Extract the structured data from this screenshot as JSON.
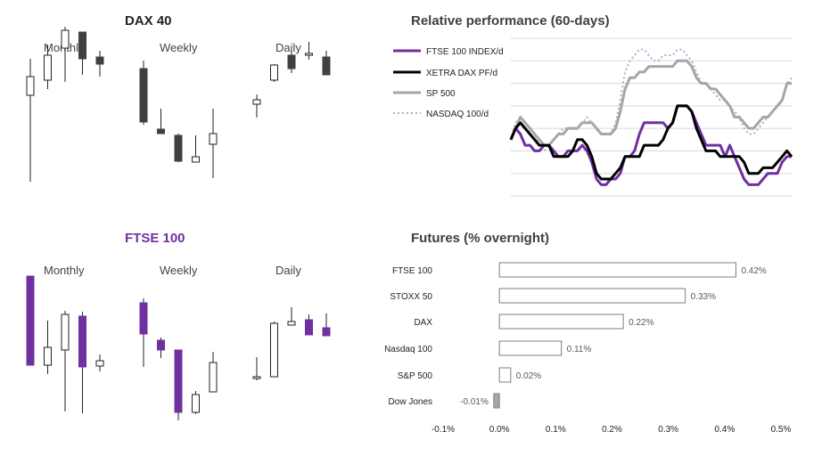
{
  "colors": {
    "purple": "#7030a0",
    "dark": "#404040",
    "black": "#000000",
    "grey": "#a6a6a6",
    "lightblue": "#9fb3d1",
    "grid": "#d9d9d9",
    "bar_border": "#7f7f7f"
  },
  "dax": {
    "title": "DAX 40",
    "monthly_label": "Monthly",
    "weekly_label": "Weekly",
    "daily_label": "Daily",
    "candle_color": "#404040",
    "monthly": [
      {
        "open": 105,
        "close": 126,
        "high": 146,
        "low": 8
      },
      {
        "open": 122,
        "close": 150,
        "high": 162,
        "low": 112
      },
      {
        "open": 158,
        "close": 178,
        "high": 182,
        "low": 120
      },
      {
        "open": 176,
        "close": 146,
        "high": 176,
        "low": 128
      },
      {
        "open": 148,
        "close": 140,
        "high": 155,
        "low": 126
      }
    ],
    "weekly": [
      {
        "open": 135,
        "close": 75,
        "high": 144,
        "low": 72
      },
      {
        "open": 67,
        "close": 62,
        "high": 90,
        "low": 62
      },
      {
        "open": 60,
        "close": 31,
        "high": 62,
        "low": 30
      },
      {
        "open": 30,
        "close": 36,
        "high": 60,
        "low": 30
      },
      {
        "open": 50,
        "close": 62,
        "high": 90,
        "low": 12
      }
    ],
    "daily": [
      {
        "open": 95,
        "close": 100,
        "high": 106,
        "low": 80
      },
      {
        "open": 122,
        "close": 139,
        "high": 140,
        "low": 120
      },
      {
        "open": 150,
        "close": 135,
        "high": 155,
        "low": 130
      },
      {
        "open": 150,
        "close": 152,
        "high": 165,
        "low": 145
      },
      {
        "open": 148,
        "close": 128,
        "high": 155,
        "low": 128
      }
    ]
  },
  "ftse": {
    "title": "FTSE 100",
    "monthly_label": "Monthly",
    "weekly_label": "Weekly",
    "daily_label": "Daily",
    "candle_color": "#7030a0",
    "monthly": [
      {
        "open": 165,
        "close": 65,
        "high": 165,
        "low": 65
      },
      {
        "open": 65,
        "close": 85,
        "high": 115,
        "low": 55
      },
      {
        "open": 82,
        "close": 122,
        "high": 126,
        "low": 13
      },
      {
        "open": 120,
        "close": 63,
        "high": 125,
        "low": 11
      },
      {
        "open": 64,
        "close": 70,
        "high": 77,
        "low": 58
      }
    ],
    "weekly": [
      {
        "open": 135,
        "close": 100,
        "high": 140,
        "low": 63
      },
      {
        "open": 93,
        "close": 82,
        "high": 96,
        "low": 73
      },
      {
        "open": 82,
        "close": 12,
        "high": 82,
        "low": 3
      },
      {
        "open": 12,
        "close": 32,
        "high": 36,
        "low": 10
      },
      {
        "open": 35,
        "close": 68,
        "high": 80,
        "low": 35
      }
    ],
    "daily": [
      {
        "open": 50,
        "close": 52,
        "high": 74,
        "low": 48
      },
      {
        "open": 52,
        "close": 112,
        "high": 114,
        "low": 52
      },
      {
        "open": 110,
        "close": 114,
        "high": 130,
        "low": 110
      },
      {
        "open": 116,
        "close": 99,
        "high": 122,
        "low": 99
      },
      {
        "open": 107,
        "close": 98,
        "high": 123,
        "low": 98
      }
    ]
  },
  "relative": {
    "title": "Relative performance (60-days)",
    "legend_title": "",
    "series": [
      {
        "name": "FTSE 100 INDEX/d",
        "color": "#7030a0",
        "style": "solid",
        "values": [
          0.0,
          2.0,
          1.0,
          -1.0,
          -1.0,
          -2.0,
          -2.0,
          -1.0,
          -1.0,
          -2.0,
          -3.0,
          -3.0,
          -2.0,
          -2.0,
          -2.0,
          -1.0,
          -2.0,
          -4.0,
          -7.0,
          -8.0,
          -8.0,
          -7.0,
          -7.0,
          -6.0,
          -3.0,
          -3.0,
          -2.0,
          1.0,
          3.0,
          3.0,
          3.0,
          3.0,
          3.0,
          2.0,
          3.0,
          6.0,
          6.0,
          6.0,
          5.0,
          3.0,
          1.0,
          -1.0,
          -1.0,
          -1.0,
          -1.0,
          -3.0,
          -1.0,
          -3.0,
          -5.0,
          -7.0,
          -8.0,
          -8.0,
          -8.0,
          -7.0,
          -6.0,
          -6.0,
          -6.0,
          -4.0,
          -3.0,
          -3.0
        ]
      },
      {
        "name": "XETRA DAX PF/d",
        "color": "#000000",
        "style": "solid",
        "values": [
          0.0,
          2.0,
          3.0,
          2.0,
          1.0,
          0.0,
          -1.0,
          -1.0,
          -1.0,
          -3.0,
          -3.0,
          -3.0,
          -3.0,
          -2.0,
          0.0,
          0.0,
          -1.0,
          -3.0,
          -6.0,
          -7.0,
          -7.0,
          -7.0,
          -6.0,
          -5.0,
          -3.0,
          -3.0,
          -3.0,
          -3.0,
          -1.0,
          -1.0,
          -1.0,
          -1.0,
          0.0,
          2.0,
          3.0,
          6.0,
          6.0,
          6.0,
          5.0,
          2.0,
          0.0,
          -2.0,
          -2.0,
          -2.0,
          -3.0,
          -3.0,
          -3.0,
          -3.0,
          -3.0,
          -4.0,
          -6.0,
          -6.0,
          -6.0,
          -5.0,
          -5.0,
          -5.0,
          -4.0,
          -3.0,
          -2.0,
          -3.0
        ]
      },
      {
        "name": "SP 500",
        "color": "#a6a6a6",
        "style": "solid",
        "values": [
          0.0,
          2.0,
          4.0,
          3.0,
          2.0,
          1.0,
          0.0,
          -1.0,
          -1.0,
          0.0,
          1.0,
          1.0,
          2.0,
          2.0,
          2.0,
          3.0,
          3.0,
          3.0,
          2.0,
          1.0,
          1.0,
          1.0,
          2.0,
          5.0,
          9.0,
          11.0,
          11.0,
          12.0,
          12.0,
          13.0,
          13.0,
          13.0,
          13.0,
          13.0,
          13.0,
          14.0,
          14.0,
          14.0,
          13.0,
          11.0,
          10.0,
          10.0,
          9.0,
          9.0,
          8.0,
          7.0,
          6.0,
          4.0,
          4.0,
          3.0,
          2.0,
          2.0,
          3.0,
          4.0,
          4.0,
          5.0,
          6.0,
          7.0,
          10.0,
          10.0
        ]
      },
      {
        "name": "NASDAQ 100/d",
        "color": "#9fb3d1",
        "style": "dotted",
        "values": [
          0.0,
          3.0,
          4.0,
          3.0,
          2.0,
          1.0,
          -1.0,
          -2.0,
          -1.0,
          0.0,
          1.0,
          2.0,
          2.0,
          2.0,
          2.0,
          3.0,
          4.0,
          3.0,
          2.0,
          1.0,
          1.0,
          1.0,
          3.0,
          7.0,
          12.0,
          14.0,
          15.0,
          16.0,
          16.0,
          15.0,
          14.0,
          14.0,
          15.0,
          15.0,
          15.0,
          16.0,
          16.0,
          15.0,
          14.0,
          12.0,
          10.0,
          10.0,
          9.0,
          8.0,
          7.0,
          7.0,
          6.0,
          5.0,
          4.0,
          2.0,
          1.0,
          1.0,
          2.0,
          3.0,
          4.0,
          5.0,
          6.0,
          7.0,
          10.0,
          11.0
        ]
      }
    ],
    "ylim": [
      -10,
      18
    ]
  },
  "futures": {
    "title": "Futures (% overnight)",
    "categories": [
      "FTSE 100",
      "STOXX 50",
      "DAX",
      "Nasdaq 100",
      "S&P 500",
      "Dow Jones"
    ],
    "values": [
      0.42,
      0.33,
      0.22,
      0.11,
      0.02,
      -0.01
    ],
    "value_labels": [
      "0.42%",
      "0.33%",
      "0.22%",
      "0.11%",
      "0.02%",
      "-0.01%"
    ],
    "ticks": [
      -0.1,
      0.0,
      0.1,
      0.2,
      0.3,
      0.4,
      0.5
    ],
    "tick_labels": [
      "-0.1%",
      "0.0%",
      "0.1%",
      "0.2%",
      "0.3%",
      "0.4%",
      "0.5%"
    ],
    "xlim": [
      -0.1,
      0.5
    ]
  },
  "chart_data": [
    {
      "type": "candlestick",
      "title": "DAX 40",
      "panels": [
        "Monthly",
        "Weekly",
        "Daily"
      ]
    },
    {
      "type": "candlestick",
      "title": "FTSE 100",
      "panels": [
        "Monthly",
        "Weekly",
        "Daily"
      ]
    },
    {
      "type": "line",
      "title": "Relative performance (60-days)",
      "series": [
        "FTSE 100 INDEX/d",
        "XETRA DAX PF/d",
        "SP 500",
        "NASDAQ 100/d"
      ],
      "grid": true,
      "legend": "left"
    },
    {
      "type": "bar",
      "orientation": "horizontal",
      "title": "Futures (% overnight)",
      "categories": [
        "FTSE 100",
        "STOXX 50",
        "DAX",
        "Nasdaq 100",
        "S&P 500",
        "Dow Jones"
      ],
      "values": [
        0.42,
        0.33,
        0.22,
        0.11,
        0.02,
        -0.01
      ],
      "xlim": [
        -0.1,
        0.5
      ]
    }
  ]
}
